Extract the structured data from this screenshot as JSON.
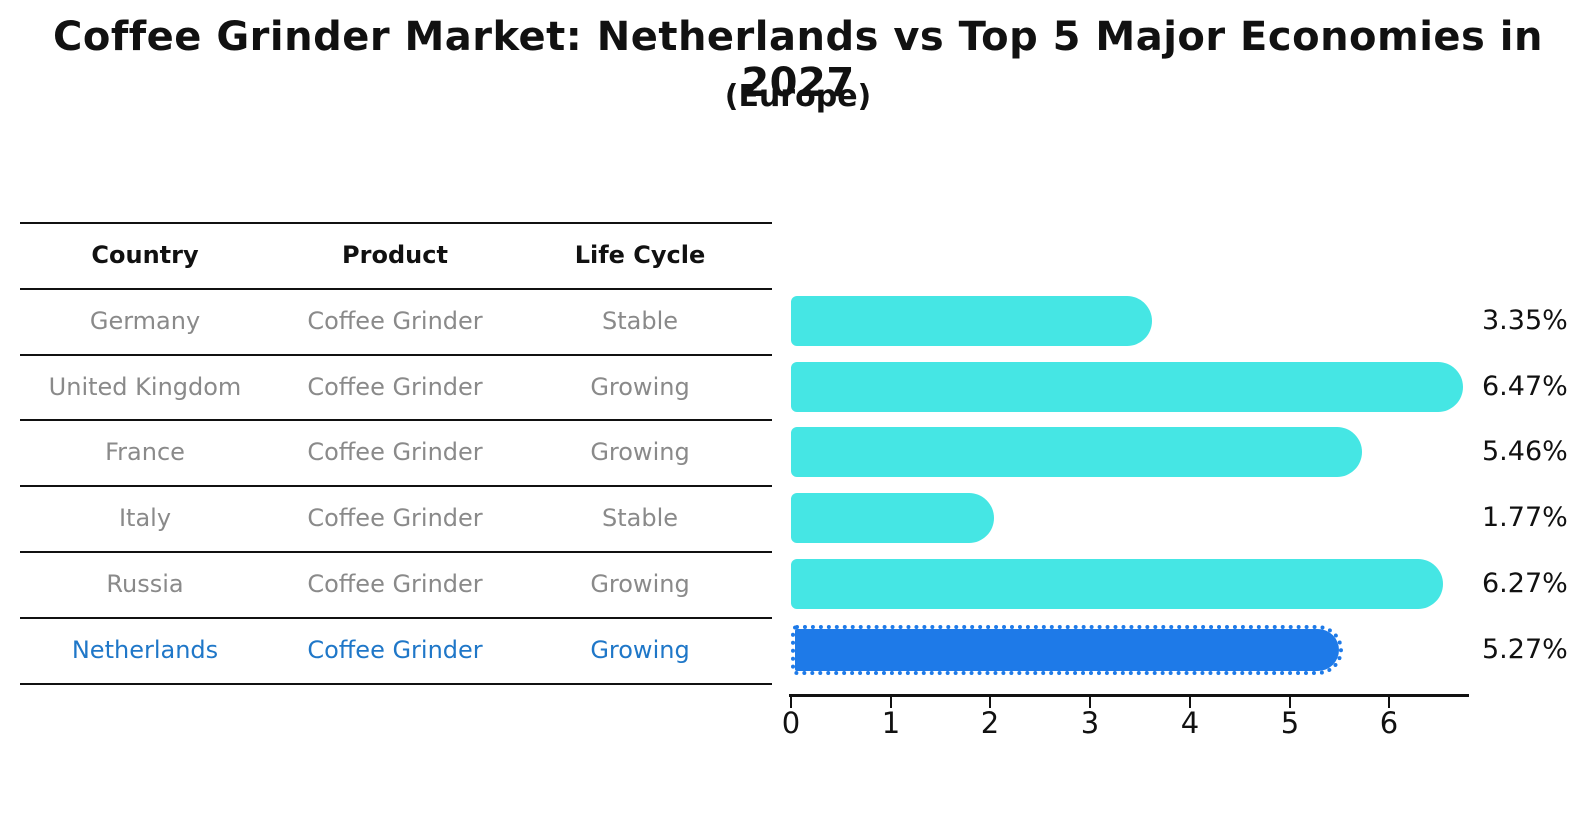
{
  "header": {
    "title": "Coffee Grinder Market: Netherlands vs Top 5 Major Economies in 2027",
    "subtitle": "(Europe)"
  },
  "table": {
    "columns": [
      "Country",
      "Product",
      "Life Cycle"
    ],
    "rows": [
      {
        "country": "Germany",
        "product": "Coffee Grinder",
        "life_cycle": "Stable",
        "highlight": false
      },
      {
        "country": "United Kingdom",
        "product": "Coffee Grinder",
        "life_cycle": "Growing",
        "highlight": false
      },
      {
        "country": "France",
        "product": "Coffee Grinder",
        "life_cycle": "Growing",
        "highlight": false
      },
      {
        "country": "Italy",
        "product": "Coffee Grinder",
        "life_cycle": "Stable",
        "highlight": false
      },
      {
        "country": "Russia",
        "product": "Coffee Grinder",
        "life_cycle": "Growing",
        "highlight": true
      }
    ],
    "highlight_row": {
      "country": "Netherlands",
      "product": "Coffee Grinder",
      "life_cycle": "Growing"
    }
  },
  "chart_data": {
    "type": "bar",
    "orientation": "horizontal",
    "title": "Coffee Grinder Market: Netherlands vs Top 5 Major Economies in 2027",
    "subtitle": "(Europe)",
    "categories": [
      "Germany",
      "United Kingdom",
      "France",
      "Italy",
      "Russia",
      "Netherlands"
    ],
    "values": [
      3.35,
      6.47,
      5.46,
      1.77,
      6.27,
      5.27
    ],
    "value_labels": [
      "3.35%",
      "6.47%",
      "5.46%",
      "1.77%",
      "6.27%",
      "5.27%"
    ],
    "highlight_index": 5,
    "xlim": [
      0,
      6.8
    ],
    "x_ticks": [
      0,
      1,
      2,
      3,
      4,
      5,
      6
    ],
    "x_tick_labels": [
      "0",
      "1",
      "2",
      "3",
      "4",
      "5",
      "6"
    ],
    "xlabel": "",
    "ylabel": "",
    "grid": false,
    "legend": "none"
  },
  "colors": {
    "bar": "#45E6E4",
    "highlight_bar": "#1E7AE8",
    "highlight_text": "#1F77C8",
    "table_text": "#8a8a8a",
    "header_text": "#111111"
  }
}
